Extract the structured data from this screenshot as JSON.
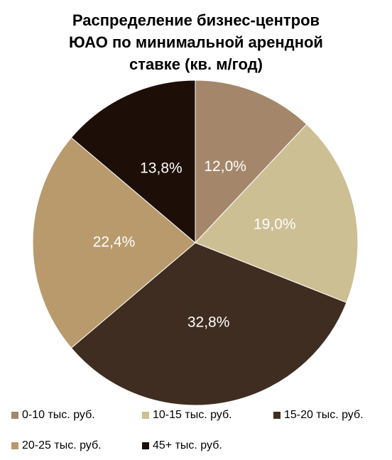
{
  "chart_data": {
    "type": "pie",
    "title": [
      "Распределение бизнес-центров",
      "ЮАО по минимальной арендной",
      "ставке (кв. м/год)"
    ],
    "categories": [
      "0-10 тыс. руб.",
      "10-15 тыс. руб.",
      "15-20 тыс. руб.",
      "20-25 тыс. руб.",
      "45+ тыс. руб."
    ],
    "values": [
      12.0,
      19.0,
      32.8,
      22.4,
      13.8
    ],
    "value_labels": [
      "12,0%",
      "19,0%",
      "32,8%",
      "22,4%",
      "13,8%"
    ],
    "colors": [
      "#a4866a",
      "#cdbf94",
      "#3e2d20",
      "#b89a6c",
      "#1d0f07"
    ],
    "legend": "bottom"
  }
}
